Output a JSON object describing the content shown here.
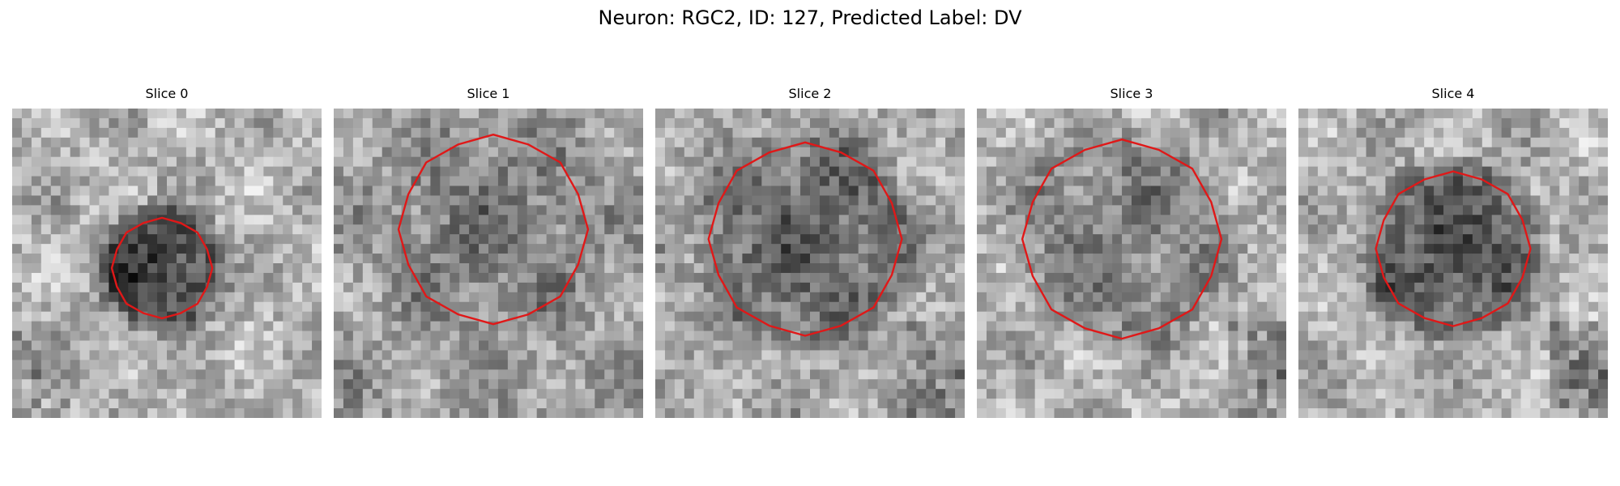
{
  "figure": {
    "title": "Neuron: RGC2, ID: 127, Predicted Label: DV",
    "contour_color": "#e01818"
  },
  "panels": [
    {
      "title": "Slice 0"
    },
    {
      "title": "Slice 1"
    },
    {
      "title": "Slice 2"
    },
    {
      "title": "Slice 3"
    },
    {
      "title": "Slice 4"
    }
  ]
}
